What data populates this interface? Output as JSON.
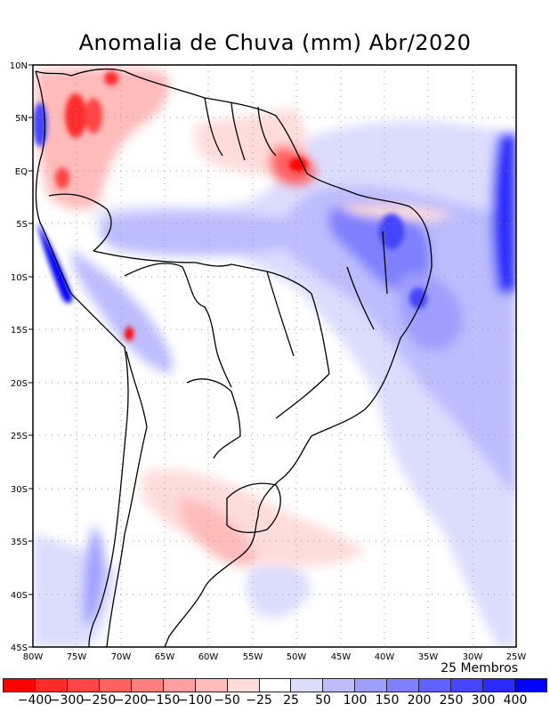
{
  "title": "Anomalia de Chuva (mm) Abr/2020",
  "footer_note": "25 Membros",
  "axes": {
    "lat_labels": [
      "10N",
      "5N",
      "EQ",
      "5S",
      "10S",
      "15S",
      "20S",
      "25S",
      "30S",
      "35S",
      "40S",
      "45S"
    ],
    "lon_labels": [
      "80W",
      "75W",
      "70W",
      "65W",
      "60W",
      "55W",
      "50W",
      "45W",
      "40W",
      "35W",
      "30W",
      "25W"
    ]
  },
  "colorbar": {
    "colors": [
      "#ff0000",
      "#ff2a2a",
      "#ff4545",
      "#ff6060",
      "#ff7f7f",
      "#ff9e9e",
      "#ffbaba",
      "#ffdcdc",
      "#ffffff",
      "#dcdcff",
      "#bcbcff",
      "#9e9eff",
      "#7f7fff",
      "#6060ff",
      "#4545ff",
      "#2a2aff",
      "#0000ff"
    ],
    "labels": [
      "-400",
      "-300",
      "-250",
      "-200",
      "-150",
      "-100",
      "-50",
      "-25",
      "25",
      "50",
      "100",
      "150",
      "200",
      "250",
      "300",
      "400"
    ]
  }
}
